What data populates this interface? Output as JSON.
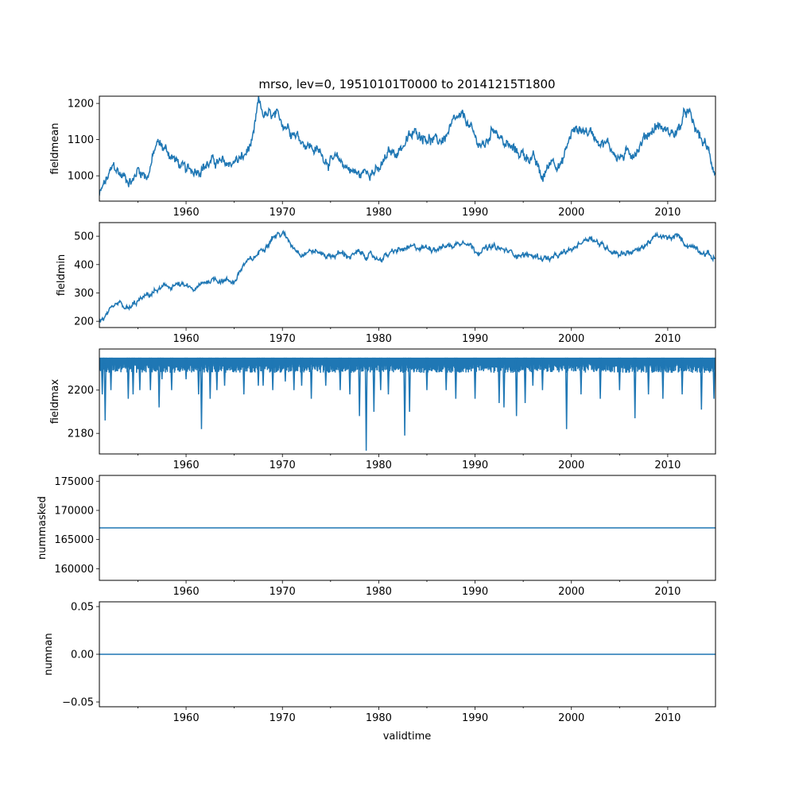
{
  "figure": {
    "title": "mrso, lev=0, 19510101T0000 to 20141215T1800",
    "xlabel": "validtime"
  },
  "colors": {
    "series": "#1f77b4",
    "axes": "#000000",
    "background": "#ffffff"
  },
  "chart_data": [
    {
      "type": "line",
      "ylabel": "fieldmean",
      "xlim": [
        1951.0,
        2014.96
      ],
      "ylim": [
        930,
        1220
      ],
      "x_ticks": [
        1960,
        1970,
        1980,
        1990,
        2000,
        2010
      ],
      "x_tick_labels": [
        "1960",
        "1970",
        "1980",
        "1990",
        "2000",
        "2010"
      ],
      "y_ticks": [
        1000,
        1100,
        1200
      ],
      "y_tick_labels": [
        "1000",
        "1100",
        "1200"
      ],
      "grid": false,
      "x": [
        1951.0,
        1951.5,
        1952.5,
        1953.3,
        1954.5,
        1955.0,
        1956.0,
        1957.0,
        1958.0,
        1959.0,
        1960.0,
        1961.0,
        1962.0,
        1963.0,
        1964.0,
        1965.0,
        1966.0,
        1967.0,
        1967.5,
        1968.0,
        1969.0,
        1970.0,
        1971.0,
        1972.0,
        1973.0,
        1974.0,
        1975.0,
        1976.0,
        1977.0,
        1978.0,
        1979.0,
        1980.0,
        1981.0,
        1982.0,
        1983.0,
        1984.0,
        1985.0,
        1986.0,
        1987.0,
        1988.0,
        1989.0,
        1990.0,
        1991.0,
        1992.0,
        1993.0,
        1994.0,
        1995.0,
        1996.0,
        1997.0,
        1998.0,
        1999.0,
        2000.0,
        2001.0,
        2002.0,
        2003.0,
        2004.0,
        2005.0,
        2006.0,
        2007.0,
        2008.0,
        2009.0,
        2010.0,
        2011.0,
        2012.0,
        2013.0,
        2014.0,
        2014.96
      ],
      "values": [
        945,
        975,
        1025,
        1000,
        985,
        1020,
        1000,
        1090,
        1070,
        1040,
        1010,
        1020,
        1030,
        1040,
        1030,
        1040,
        1050,
        1100,
        1200,
        1170,
        1160,
        1150,
        1130,
        1100,
        1080,
        1060,
        1040,
        1040,
        1020,
        1000,
        1020,
        1010,
        1060,
        1070,
        1100,
        1120,
        1110,
        1090,
        1110,
        1150,
        1160,
        1100,
        1080,
        1140,
        1090,
        1070,
        1060,
        1050,
        990,
        1050,
        1030,
        1120,
        1130,
        1120,
        1100,
        1080,
        1050,
        1060,
        1080,
        1120,
        1140,
        1120,
        1120,
        1180,
        1120,
        1080,
        1010
      ],
      "noise_amplitude": 18
    },
    {
      "type": "line",
      "ylabel": "fieldmin",
      "xlim": [
        1951.0,
        2014.96
      ],
      "ylim": [
        178,
        548
      ],
      "x_ticks": [
        1960,
        1970,
        1980,
        1990,
        2000,
        2010
      ],
      "x_tick_labels": [
        "1960",
        "1970",
        "1980",
        "1990",
        "2000",
        "2010"
      ],
      "y_ticks": [
        200,
        300,
        400,
        500
      ],
      "y_tick_labels": [
        "200",
        "300",
        "400",
        "500"
      ],
      "grid": false,
      "x": [
        1951.0,
        1952.0,
        1953.0,
        1954.0,
        1955.0,
        1956.0,
        1957.0,
        1958.0,
        1959.0,
        1960.0,
        1961.0,
        1962.0,
        1963.0,
        1964.0,
        1965.0,
        1966.0,
        1967.0,
        1968.0,
        1969.0,
        1970.0,
        1971.0,
        1972.0,
        1973.0,
        1974.0,
        1975.0,
        1976.0,
        1977.0,
        1978.0,
        1979.0,
        1980.0,
        1982.0,
        1984.0,
        1986.0,
        1988.0,
        1989.0,
        1990.0,
        1992.0,
        1994.0,
        1996.0,
        1998.0,
        2000.0,
        2001.0,
        2002.0,
        2003.0,
        2005.0,
        2007.0,
        2008.0,
        2009.0,
        2010.0,
        2011.0,
        2012.0,
        2013.0,
        2014.0,
        2014.96
      ],
      "values": [
        200,
        225,
        260,
        240,
        270,
        290,
        310,
        320,
        330,
        320,
        310,
        340,
        350,
        345,
        340,
        400,
        420,
        460,
        500,
        510,
        470,
        440,
        450,
        440,
        430,
        440,
        430,
        440,
        430,
        420,
        450,
        460,
        460,
        470,
        490,
        450,
        460,
        440,
        430,
        420,
        450,
        480,
        500,
        470,
        440,
        450,
        480,
        500,
        490,
        500,
        470,
        460,
        440,
        420
      ],
      "noise_amplitude": 12
    },
    {
      "type": "line",
      "ylabel": "fieldmax",
      "xlim": [
        1951.0,
        2014.96
      ],
      "ylim": [
        2170.5,
        2219
      ],
      "x_ticks": [
        1960,
        1970,
        1980,
        1990,
        2000,
        2010
      ],
      "x_tick_labels": [
        "1960",
        "1970",
        "1980",
        "1990",
        "2000",
        "2010"
      ],
      "y_ticks": [
        2180,
        2200
      ],
      "y_tick_labels": [
        "2180",
        "2200"
      ],
      "grid": false,
      "baseline": 2215,
      "band_low": 2208,
      "dips_x": [
        1951.3,
        1951.6,
        1952.2,
        1954.0,
        1954.5,
        1955.2,
        1956.3,
        1957.2,
        1957.5,
        1958.5,
        1960.0,
        1961.3,
        1961.6,
        1962.5,
        1963.2,
        1964.0,
        1966.0,
        1967.5,
        1968.0,
        1969.0,
        1970.3,
        1971.2,
        1972.0,
        1973.0,
        1974.5,
        1976.0,
        1977.0,
        1978.0,
        1978.7,
        1979.5,
        1980.2,
        1981.0,
        1982.7,
        1983.2,
        1985.0,
        1987.0,
        1988.0,
        1990.0,
        1992.5,
        1993.0,
        1994.3,
        1995.2,
        1996.0,
        1997.0,
        1999.5,
        2001.0,
        2003.0,
        2005.0,
        2006.6,
        2008.0,
        2009.5,
        2011.5,
        2013.5,
        2014.8
      ],
      "dips_y": [
        2198,
        2186,
        2200,
        2196,
        2198,
        2200,
        2200,
        2192,
        2205,
        2200,
        2205,
        2198,
        2182,
        2196,
        2200,
        2202,
        2198,
        2202,
        2202,
        2200,
        2204,
        2200,
        2202,
        2196,
        2202,
        2200,
        2198,
        2188,
        2172,
        2190,
        2200,
        2198,
        2179,
        2190,
        2200,
        2200,
        2196,
        2196,
        2194,
        2192,
        2188,
        2194,
        2202,
        2200,
        2182,
        2198,
        2196,
        2200,
        2187,
        2198,
        2196,
        2198,
        2191,
        2196
      ]
    },
    {
      "type": "line",
      "ylabel": "nummasked",
      "xlim": [
        1951.0,
        2014.96
      ],
      "ylim": [
        158000,
        176000
      ],
      "x_ticks": [
        1960,
        1970,
        1980,
        1990,
        2000,
        2010
      ],
      "x_tick_labels": [
        "1960",
        "1970",
        "1980",
        "1990",
        "2000",
        "2010"
      ],
      "y_ticks": [
        160000,
        165000,
        170000,
        175000
      ],
      "y_tick_labels": [
        "160000",
        "165000",
        "170000",
        "175000"
      ],
      "grid": false,
      "x": [
        1951.0,
        2014.96
      ],
      "values": [
        167000,
        167000
      ]
    },
    {
      "type": "line",
      "ylabel": "numnan",
      "xlim": [
        1951.0,
        2014.96
      ],
      "ylim": [
        -0.055,
        0.055
      ],
      "x_ticks": [
        1960,
        1970,
        1980,
        1990,
        2000,
        2010
      ],
      "x_tick_labels": [
        "1960",
        "1970",
        "1980",
        "1990",
        "2000",
        "2010"
      ],
      "y_ticks": [
        -0.05,
        0.0,
        0.05
      ],
      "y_tick_labels": [
        "−0.05",
        "0.00",
        "0.05"
      ],
      "grid": false,
      "x": [
        1951.0,
        2014.96
      ],
      "values": [
        0,
        0
      ]
    }
  ]
}
